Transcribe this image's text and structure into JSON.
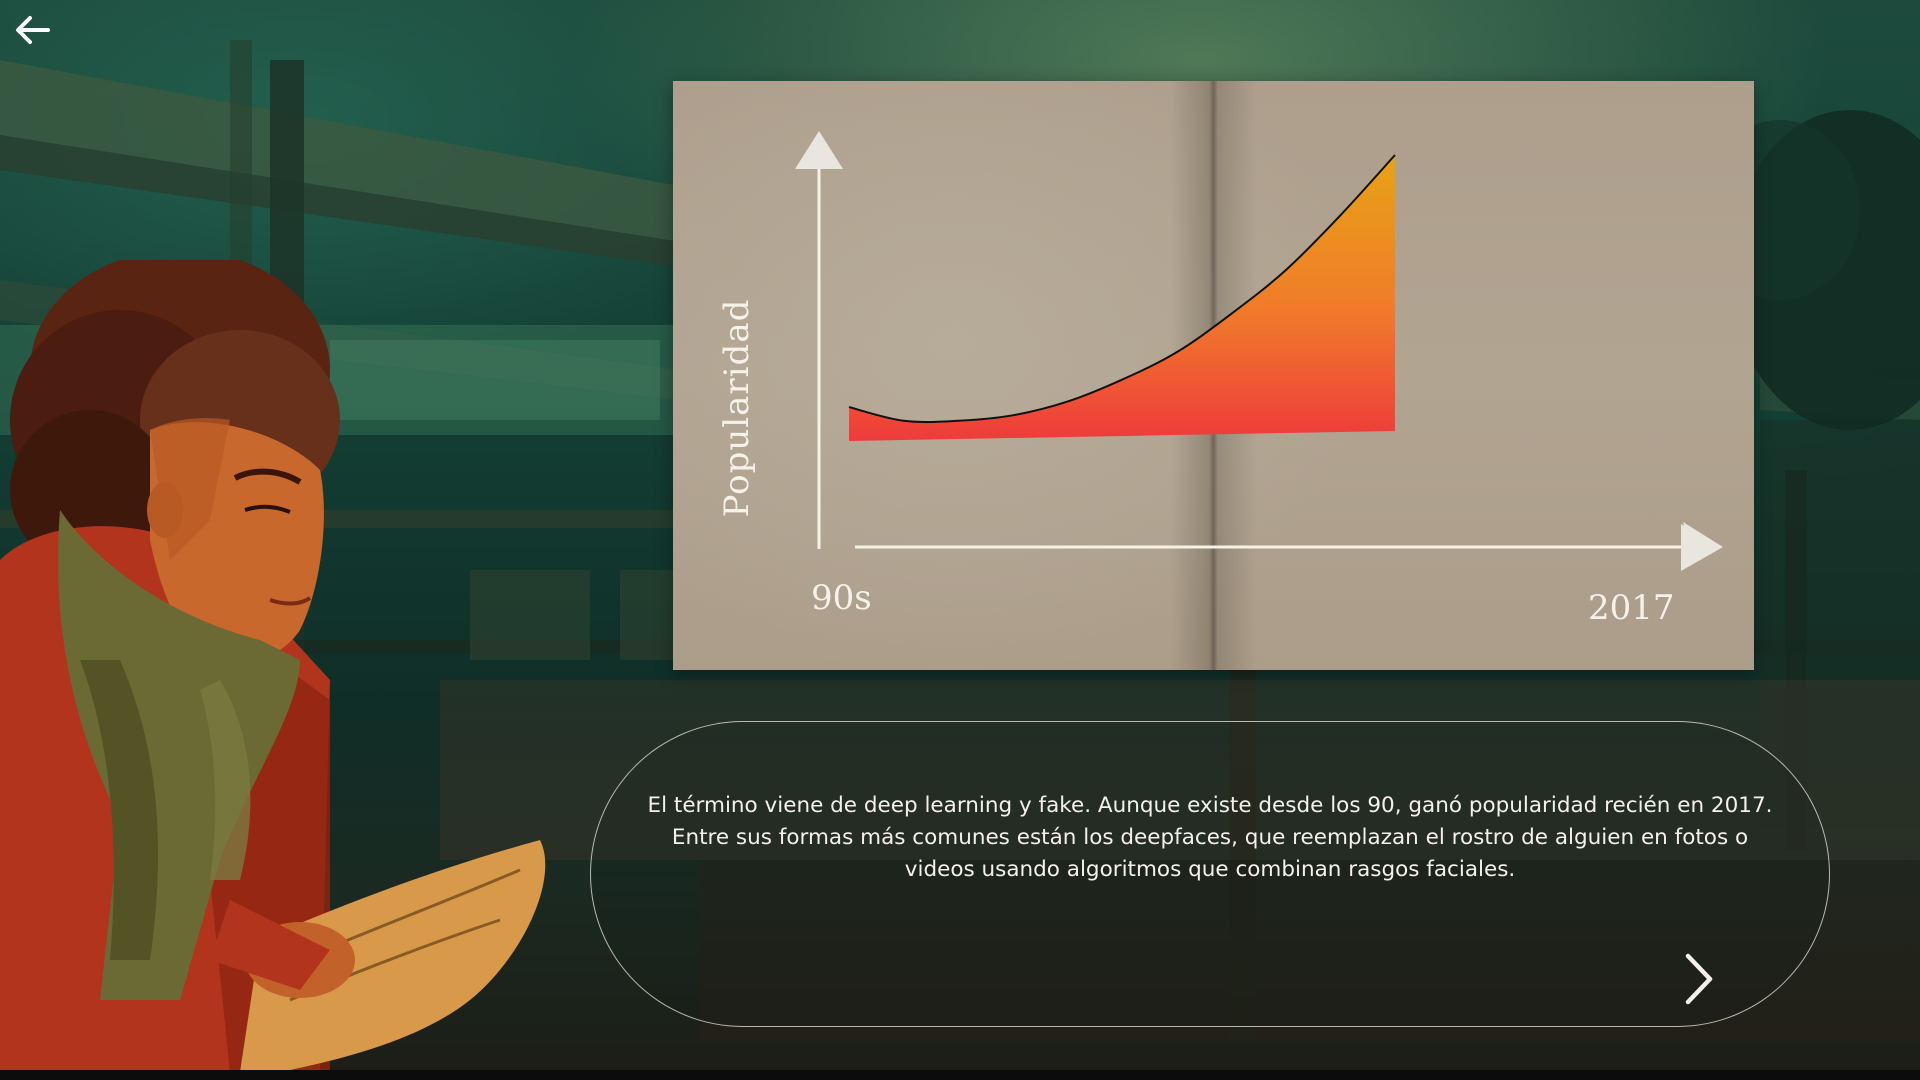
{
  "navigation": {
    "back_icon": "arrow-left-icon",
    "next_icon": "chevron-right-icon"
  },
  "chart_data": {
    "type": "area",
    "xlabel": "",
    "ylabel": "Popularidad",
    "x_tick_labels": [
      "90s",
      "2017"
    ],
    "x": [
      "90s",
      "2017"
    ],
    "series": [
      {
        "values_description_free": true,
        "points": [
          [
            0,
            0.08
          ],
          [
            0.1,
            0.03
          ],
          [
            0.2,
            0.03
          ],
          [
            0.3,
            0.05
          ],
          [
            0.4,
            0.1
          ],
          [
            0.5,
            0.18
          ],
          [
            0.6,
            0.28
          ],
          [
            0.7,
            0.42
          ],
          [
            0.8,
            0.58
          ],
          [
            0.9,
            0.78
          ],
          [
            1.0,
            1.0
          ]
        ]
      }
    ],
    "fill_colors": [
      "#ee3b3b",
      "#f07a2a",
      "#e8a315"
    ],
    "line_color": "#111111",
    "grid": false
  },
  "caption": {
    "text": "El término viene de deep learning y fake. Aunque existe desde los 90, ganó popularidad recién en 2017. Entre sus formas más comunes están los deepfaces, que reemplazan el rostro de alguien en fotos o videos usando algoritmos que combinan rasgos faciales."
  },
  "colors": {
    "axis": "#f6f2ea",
    "page": "#b1a491",
    "text": "#f4f1ea"
  }
}
